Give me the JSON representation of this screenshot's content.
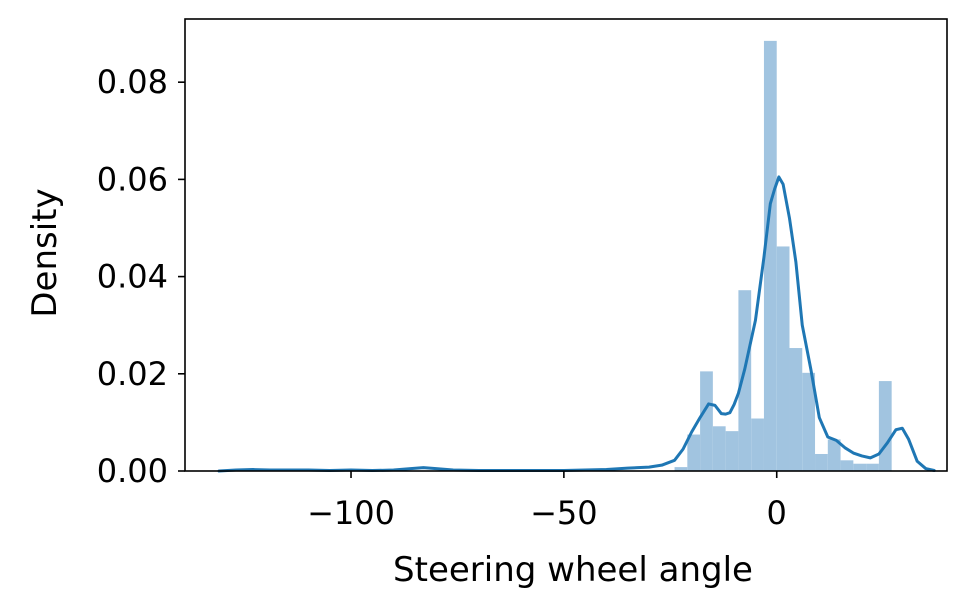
{
  "chart_data": {
    "type": "bar",
    "xlabel": "Steering wheel angle",
    "ylabel": "Density",
    "xlim": [
      -139,
      40
    ],
    "ylim": [
      0,
      0.093
    ],
    "xticks": [
      -100,
      -50,
      0
    ],
    "xtick_labels": [
      "−100",
      "−50",
      "0"
    ],
    "yticks": [
      0,
      0.02,
      0.04,
      0.06,
      0.08
    ],
    "ytick_labels": [
      "0.00",
      "0.02",
      "0.04",
      "0.06",
      "0.08"
    ],
    "grid": false,
    "series": [
      {
        "kind": "histogram",
        "color": "#a1c4e0",
        "bin_width": 3.0,
        "bins": [
          {
            "x0": -24,
            "x1": -21,
            "density": 0.0008
          },
          {
            "x0": -21,
            "x1": -18,
            "density": 0.0075
          },
          {
            "x0": -18,
            "x1": -15,
            "density": 0.0205
          },
          {
            "x0": -15,
            "x1": -12,
            "density": 0.0092
          },
          {
            "x0": -12,
            "x1": -9,
            "density": 0.0082
          },
          {
            "x0": -9,
            "x1": -6,
            "density": 0.0372
          },
          {
            "x0": -6,
            "x1": -3,
            "density": 0.0108
          },
          {
            "x0": -3,
            "x1": 0,
            "density": 0.0885
          },
          {
            "x0": 0,
            "x1": 3,
            "density": 0.0462
          },
          {
            "x0": 3,
            "x1": 6,
            "density": 0.0253
          },
          {
            "x0": 6,
            "x1": 9,
            "density": 0.0202
          },
          {
            "x0": 9,
            "x1": 12,
            "density": 0.0035
          },
          {
            "x0": 12,
            "x1": 15,
            "density": 0.0065
          },
          {
            "x0": 15,
            "x1": 18,
            "density": 0.0022
          },
          {
            "x0": 18,
            "x1": 21,
            "density": 0.0015
          },
          {
            "x0": 21,
            "x1": 24,
            "density": 0.0015
          },
          {
            "x0": 24,
            "x1": 27,
            "density": 0.0185
          }
        ]
      },
      {
        "kind": "kde",
        "color": "#1f77b4",
        "x": [
          -131,
          -127,
          -123,
          -119,
          -115,
          -110,
          -105,
          -100,
          -95,
          -90,
          -86,
          -83,
          -80,
          -76,
          -70,
          -60,
          -50,
          -40,
          -35,
          -30,
          -27,
          -24,
          -22,
          -20,
          -18,
          -16,
          -14.5,
          -13,
          -12,
          -11,
          -10,
          -9,
          -7.5,
          -5,
          -3,
          -1.5,
          -0.5,
          0.5,
          1.5,
          3,
          4.5,
          6,
          8,
          10,
          12,
          14,
          16,
          18,
          20,
          22,
          24,
          26,
          28,
          29.5,
          31,
          33,
          35,
          37
        ],
        "y": [
          0.0,
          0.0002,
          0.0003,
          0.0002,
          0.0002,
          0.0002,
          0.0001,
          0.0002,
          0.0001,
          0.0002,
          0.0005,
          0.0007,
          0.0005,
          0.0002,
          0.0001,
          0.0001,
          0.0001,
          0.0003,
          0.0006,
          0.0008,
          0.0012,
          0.0022,
          0.0045,
          0.008,
          0.011,
          0.0138,
          0.0135,
          0.0118,
          0.0117,
          0.012,
          0.0137,
          0.016,
          0.021,
          0.031,
          0.044,
          0.055,
          0.058,
          0.0605,
          0.059,
          0.052,
          0.043,
          0.03,
          0.021,
          0.011,
          0.007,
          0.0063,
          0.0048,
          0.0037,
          0.0031,
          0.0027,
          0.0035,
          0.0058,
          0.0085,
          0.0088,
          0.0065,
          0.002,
          0.0005,
          0.0001
        ]
      }
    ]
  }
}
